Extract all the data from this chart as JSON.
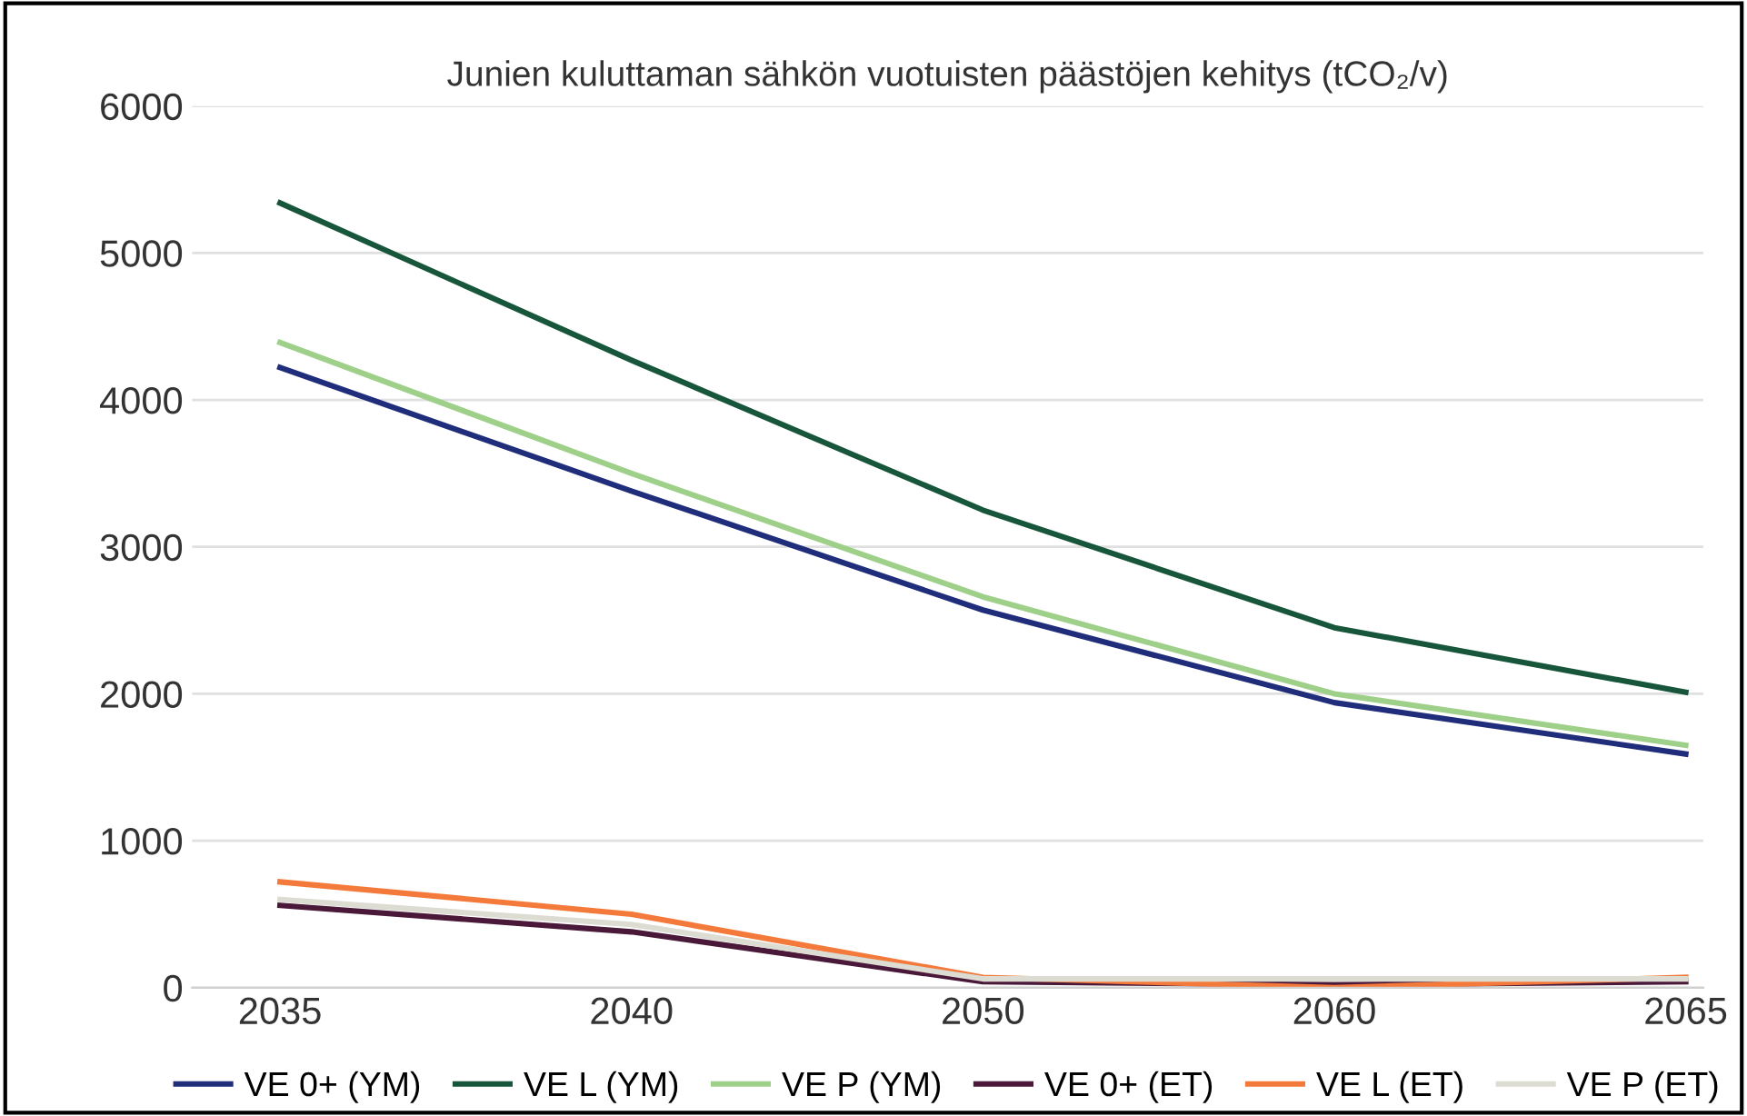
{
  "chart_data": {
    "type": "line",
    "title": "Junien kuluttaman sähkön vuotuisten päästöjen kehitys (tCO₂/v)",
    "categories": [
      "2035",
      "2040",
      "2050",
      "2060",
      "2065"
    ],
    "series": [
      {
        "name": "VE 0+ (YM)",
        "color": "#1f2d7a",
        "values": [
          4220,
          3380,
          2570,
          1940,
          1590
        ]
      },
      {
        "name": "VE L (YM)",
        "color": "#17563a",
        "values": [
          5340,
          4270,
          3250,
          2450,
          2010
        ]
      },
      {
        "name": "VE P (YM)",
        "color": "#9fd08a",
        "values": [
          4390,
          3500,
          2660,
          2000,
          1650
        ]
      },
      {
        "name": "VE 0+ (ET)",
        "color": "#4a1838",
        "values": [
          560,
          380,
          40,
          20,
          40
        ]
      },
      {
        "name": "VE L (ET)",
        "color": "#f47a3c",
        "values": [
          720,
          500,
          70,
          0,
          70
        ]
      },
      {
        "name": "VE P (ET)",
        "color": "#dcdcd2",
        "values": [
          600,
          430,
          60,
          60,
          60
        ]
      }
    ],
    "ylim": [
      0,
      6000
    ],
    "yticks": [
      0,
      1000,
      2000,
      3000,
      4000,
      5000,
      6000
    ],
    "grid": "y",
    "legend": "bottom",
    "marker": "none",
    "line_style": "solid"
  }
}
